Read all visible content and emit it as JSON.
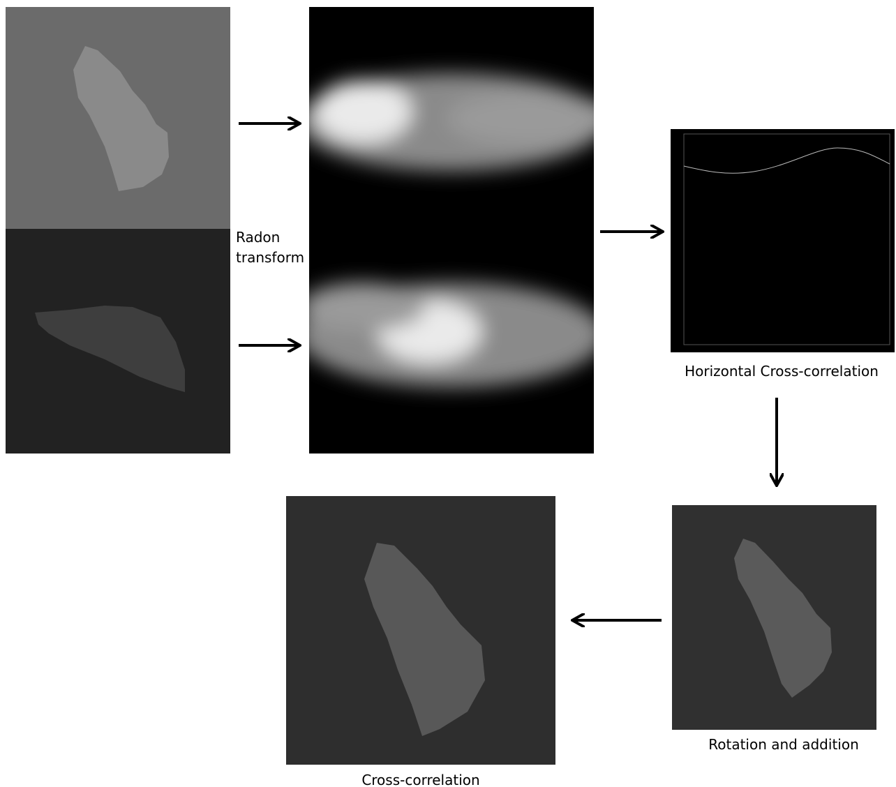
{
  "radon_label": [
    "Radon",
    "transform"
  ],
  "captions": {
    "horizontal": "Horizontal Cross-correlation",
    "rotation": "Rotation and addition",
    "cross": "Cross-correlation"
  }
}
